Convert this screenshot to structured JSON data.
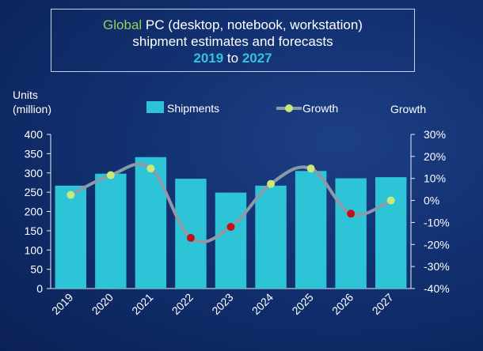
{
  "title": {
    "part1_green": "Global",
    "part1_rest": " PC (desktop, notebook, workstation)",
    "line2": "shipment estimates and forecasts",
    "year_start": "2019",
    "to_word": " to ",
    "year_end": "2027"
  },
  "y_left_label_line1": "Units",
  "y_left_label_line2": "(million)",
  "y_right_label": "Growth",
  "colors": {
    "bar": "#2ec4d8",
    "line": "#8c9aa8",
    "marker_positive": "#c7ea7a",
    "marker_negative": "#c0101b",
    "title_green": "#8fd45a",
    "title_cyan": "#35c3da"
  },
  "chart_data": {
    "type": "bar",
    "categories": [
      "2019",
      "2020",
      "2021",
      "2022",
      "2023",
      "2024",
      "2025",
      "2026",
      "2027"
    ],
    "series": [
      {
        "name": "Shipments",
        "type": "bar",
        "axis": "left",
        "values": [
          267,
          298,
          341,
          285,
          249,
          267,
          305,
          286,
          289
        ]
      },
      {
        "name": "Growth",
        "type": "line",
        "axis": "right",
        "values": [
          2.5,
          11.5,
          14.5,
          -17,
          -12,
          7.5,
          14.5,
          -6,
          0
        ]
      }
    ],
    "ylim_left": [
      0,
      400
    ],
    "yticks_left": [
      "0",
      "50",
      "100",
      "150",
      "200",
      "250",
      "300",
      "350",
      "400"
    ],
    "ylim_right": [
      -40,
      30
    ],
    "yticks_right": [
      "-40%",
      "-30%",
      "-20%",
      "-10%",
      "0%",
      "10%",
      "20%",
      "30%"
    ],
    "legend": [
      "Shipments",
      "Growth"
    ],
    "legend_position": "top",
    "grid": false
  }
}
